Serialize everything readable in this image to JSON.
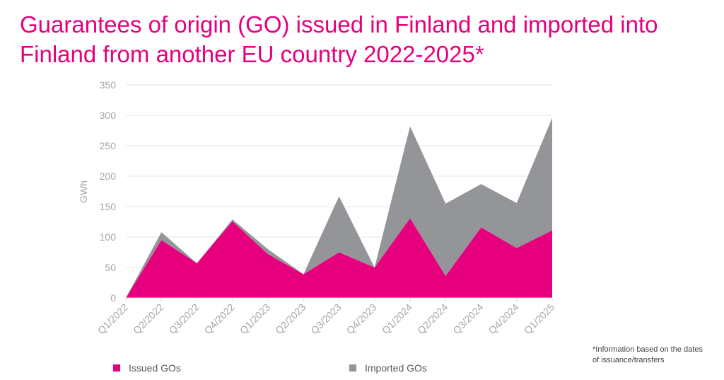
{
  "chart_data": {
    "type": "area",
    "stacked": true,
    "title": "Guarantees of origin (GO) issued in Finland and imported into Finland from another EU country 2022-2025*",
    "xlabel": "",
    "ylabel": "GWh",
    "ylim": [
      0,
      350
    ],
    "yticks": [
      0,
      50,
      100,
      150,
      200,
      250,
      300,
      350
    ],
    "grid": true,
    "legend_position": "bottom",
    "categories": [
      "Q1/2022",
      "Q2/2022",
      "Q3/2022",
      "Q4/2022",
      "Q1/2023",
      "Q2/2023",
      "Q3/2023",
      "Q4/2023",
      "Q1/2024",
      "Q2/2024",
      "Q3/2024",
      "Q4/2024",
      "Q1/2025"
    ],
    "series": [
      {
        "name": "Issued GOs",
        "color": "#e6007e",
        "values": [
          0,
          95,
          57,
          126,
          72,
          39,
          75,
          50,
          131,
          36,
          116,
          82,
          111
        ]
      },
      {
        "name": "Imported GOs",
        "color": "#939598",
        "values": [
          0,
          13,
          0,
          3,
          8,
          0,
          92,
          0,
          151,
          119,
          71,
          74,
          185
        ]
      }
    ],
    "footnote": "*Information based on the dates of issuance/transfers"
  }
}
